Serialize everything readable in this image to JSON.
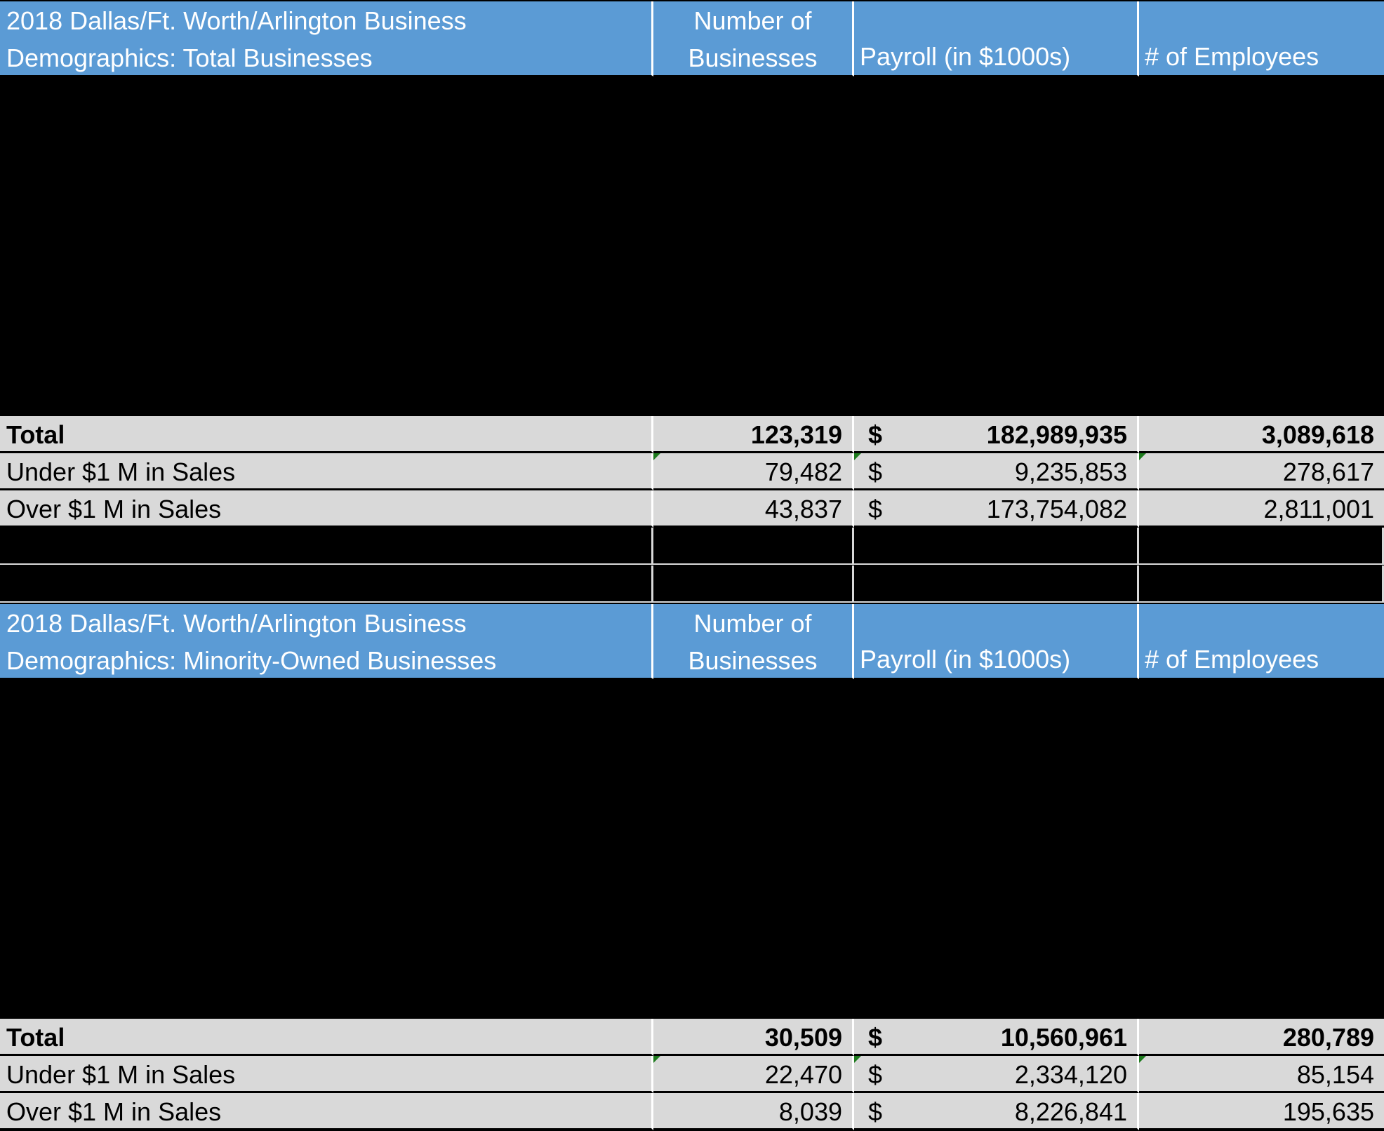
{
  "tables": [
    {
      "title": "2018 Dallas/Ft. Worth/Arlington Business Demographics: Total Businesses",
      "title_line1": "2018 Dallas/Ft. Worth/Arlington Business",
      "title_line2": "Demographics: Total Businesses",
      "col_businesses_line1": "Number of",
      "col_businesses_line2": "Businesses",
      "col_payroll": "Payroll (in $1000s)",
      "col_employees": "# of Employees",
      "rows": [
        {
          "label": "Total",
          "businesses": "123,319",
          "currency": "$",
          "payroll": "182,989,935",
          "employees": "3,089,618"
        },
        {
          "label": "Under $1 M in Sales",
          "businesses": "79,482",
          "currency": "$",
          "payroll": "9,235,853",
          "employees": "278,617"
        },
        {
          "label": "Over $1 M in Sales",
          "businesses": "43,837",
          "currency": "$",
          "payroll": "173,754,082",
          "employees": "2,811,001"
        }
      ]
    },
    {
      "title": "2018 Dallas/Ft. Worth/Arlington Business Demographics: Minority-Owned Businesses",
      "title_line1": "2018 Dallas/Ft. Worth/Arlington Business",
      "title_line2": "Demographics: Minority-Owned Businesses",
      "col_businesses_line1": "Number of",
      "col_businesses_line2": "Businesses",
      "col_payroll": "Payroll (in $1000s)",
      "col_employees": "# of Employees",
      "rows": [
        {
          "label": "Total",
          "businesses": "30,509",
          "currency": "$",
          "payroll": "10,560,961",
          "employees": "280,789"
        },
        {
          "label": "Under $1 M in Sales",
          "businesses": "22,470",
          "currency": "$",
          "payroll": "2,334,120",
          "employees": "85,154"
        },
        {
          "label": "Over $1 M in Sales",
          "businesses": "8,039",
          "currency": "$",
          "payroll": "8,226,841",
          "employees": "195,635"
        }
      ]
    }
  ],
  "colors": {
    "header_bg": "#5b9bd5",
    "row_bg": "#d9d9d9",
    "sheet_bg": "#000000",
    "error_flag": "#1e7b1e"
  }
}
